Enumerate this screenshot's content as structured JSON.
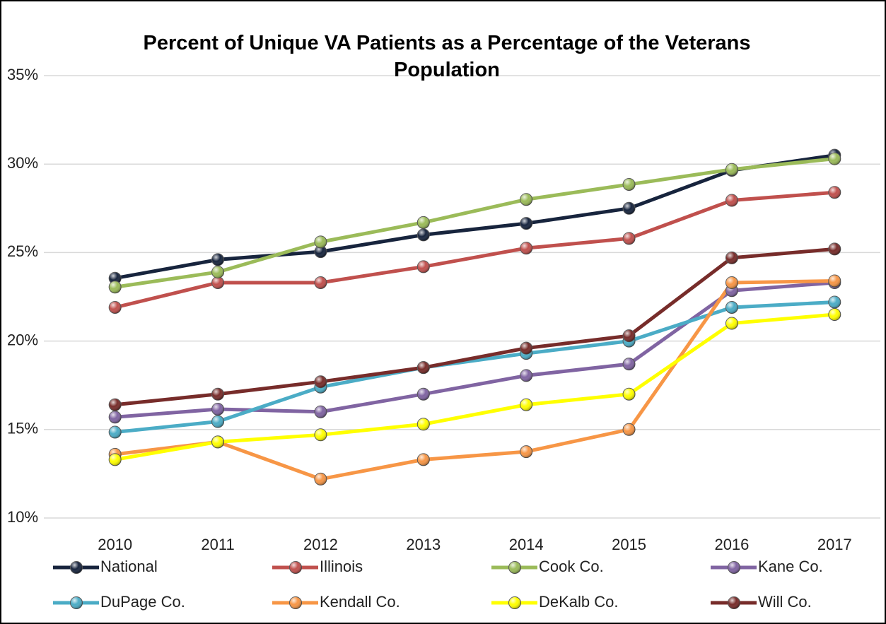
{
  "chart_data": {
    "type": "line",
    "title": "Percent of Unique VA Patients as a Percentage of the Veterans Population",
    "categories": [
      "2010",
      "2011",
      "2012",
      "2013",
      "2014",
      "2015",
      "2016",
      "2017"
    ],
    "series": [
      {
        "name": "National",
        "color": "#17243d",
        "values": [
          23.55,
          24.6,
          25.05,
          26.0,
          26.65,
          27.5,
          29.65,
          30.5
        ]
      },
      {
        "name": "Illinois",
        "color": "#c0504d",
        "values": [
          21.9,
          23.3,
          23.3,
          24.2,
          25.25,
          25.8,
          27.95,
          28.4
        ]
      },
      {
        "name": "Cook Co.",
        "color": "#9bbb59",
        "values": [
          23.05,
          23.9,
          25.6,
          26.7,
          28.0,
          28.85,
          29.7,
          30.3
        ]
      },
      {
        "name": "Kane Co.",
        "color": "#8064a2",
        "values": [
          15.7,
          16.15,
          16.0,
          17.0,
          18.05,
          18.7,
          22.85,
          23.3
        ]
      },
      {
        "name": "DuPage Co.",
        "color": "#4bacc6",
        "values": [
          14.85,
          15.45,
          17.4,
          18.5,
          19.3,
          20.0,
          21.9,
          22.2
        ]
      },
      {
        "name": "Kendall Co.",
        "color": "#f79646",
        "values": [
          13.6,
          14.3,
          12.2,
          13.3,
          13.75,
          15.0,
          23.3,
          23.4
        ]
      },
      {
        "name": "DeKalb Co.",
        "color": "#ffff00",
        "values": [
          13.3,
          14.3,
          14.7,
          15.3,
          16.4,
          17.0,
          21.0,
          21.5
        ]
      },
      {
        "name": "Will Co.",
        "color": "#772c2a",
        "values": [
          16.4,
          17.0,
          17.7,
          18.5,
          19.6,
          20.3,
          24.7,
          25.2
        ]
      }
    ],
    "ylim": [
      10,
      35
    ],
    "yticks": [
      {
        "value": 10,
        "label": "10%"
      },
      {
        "value": 15,
        "label": "15%"
      },
      {
        "value": 20,
        "label": "20%"
      },
      {
        "value": 25,
        "label": "25%"
      },
      {
        "value": 30,
        "label": "30%"
      },
      {
        "value": 35,
        "label": "35%"
      }
    ],
    "grid": true,
    "legend": "bottom"
  }
}
